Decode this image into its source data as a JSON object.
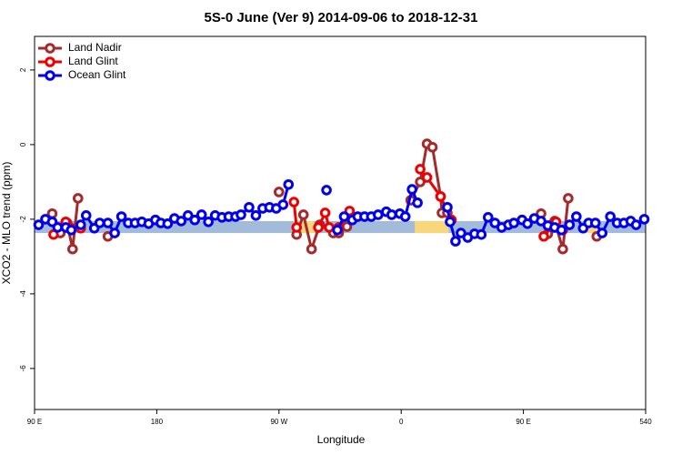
{
  "chart_data": {
    "type": "line",
    "title": "5S-0 June (Ver 9)   2014-09-06 to 2018-12-31",
    "x_label": "Longitude",
    "y_label": "XCO2 - MLO trend (ppm)",
    "xlim": [
      90,
      540
    ],
    "ylim": [
      -7.1,
      2.9
    ],
    "xticks": [
      {
        "value": 90,
        "label": "90 E"
      },
      180,
      {
        "value": 270,
        "label": "90 W"
      },
      {
        "value": 360,
        "label": "0"
      },
      {
        "value": 450,
        "label": "90 E"
      },
      540
    ],
    "yticks": [
      2,
      0,
      -2,
      -4,
      -6
    ],
    "legend": "top-left",
    "shaded_band": {
      "ylim": [
        -2.37,
        -2.05
      ],
      "color": "#a3bbdb",
      "highlight": [
        [
          281,
          296
        ],
        [
          370,
          395
        ],
        [
          494,
          505
        ]
      ],
      "highlight_color": "#f8d77c"
    },
    "series": [
      {
        "name": "Land Nadir",
        "color": "#a52a2a",
        "x": [
          103,
          109,
          114,
          118,
          122,
          127,
          144,
          200,
          270,
          275,
          283,
          288,
          294,
          300,
          310,
          314,
          320,
          340,
          367,
          374,
          379,
          383,
          389,
          390,
          394,
          430,
          463,
          468,
          473,
          479,
          483,
          500,
          504
        ],
        "values": [
          -1.85,
          -2.37,
          -2.1,
          -2.8,
          -1.44,
          null,
          -2.46,
          null,
          -1.27,
          null,
          -2.41,
          -1.88,
          -2.8,
          -2.15,
          -2.37,
          -2.37,
          -2.2,
          null,
          -1.49,
          -1.0,
          0.02,
          -0.07,
          -1.39,
          -1.83,
          -1.83,
          null,
          -1.85,
          -2.39,
          -2.05,
          -2.8,
          -1.44,
          null,
          -2.46
        ]
      },
      {
        "name": "Land Glint",
        "color": "#ee0000",
        "x": [
          104,
          113,
          124,
          200,
          281,
          283,
          290,
          299,
          304,
          307,
          314,
          322,
          340,
          374,
          379,
          389,
          397,
          430,
          465,
          474,
          479
        ],
        "values": [
          -2.41,
          -2.07,
          -2.24,
          null,
          -1.54,
          -2.22,
          null,
          -2.22,
          -1.83,
          -2.22,
          -2.22,
          -1.78,
          null,
          -0.66,
          -0.88,
          -1.39,
          -2.02,
          null,
          -2.46,
          -2.07,
          -2.29
        ]
      },
      {
        "name": "Ocean Glint",
        "color": "#0000ee",
        "x": [
          93,
          98,
          103,
          107,
          113,
          117,
          124,
          128,
          134,
          138,
          144,
          149,
          154,
          159,
          164,
          169,
          174,
          179,
          183,
          188,
          193,
          198,
          203,
          208,
          213,
          218,
          223,
          228,
          233,
          238,
          242,
          248,
          253,
          258,
          263,
          268,
          273,
          277,
          290,
          305,
          309,
          313,
          318,
          324,
          328,
          333,
          338,
          343,
          349,
          353,
          359,
          363,
          368,
          372,
          383,
          394,
          396,
          400,
          404,
          409,
          414,
          419,
          424,
          429,
          434,
          439,
          443,
          449,
          453,
          458,
          463,
          468,
          473,
          478,
          484,
          489,
          494,
          498,
          503,
          508,
          514,
          519,
          524,
          529,
          533,
          539
        ],
        "values": [
          -2.15,
          -2.0,
          -2.07,
          -2.22,
          -2.22,
          -2.29,
          -2.15,
          -1.9,
          -2.24,
          -2.1,
          -2.1,
          -2.37,
          -1.93,
          -2.1,
          -2.1,
          -2.07,
          -2.12,
          -2.02,
          -2.1,
          -2.12,
          -1.98,
          -2.05,
          -1.9,
          -2.02,
          -1.88,
          -2.07,
          -1.9,
          -1.95,
          -1.93,
          -1.93,
          -1.88,
          -1.68,
          -1.9,
          -1.71,
          -1.68,
          -1.71,
          -1.61,
          -1.07,
          null,
          -1.22,
          null,
          -2.29,
          -1.93,
          -2.02,
          -1.93,
          -1.93,
          -1.93,
          -1.88,
          -1.8,
          -1.88,
          -1.85,
          -1.93,
          -1.2,
          -1.56,
          null,
          -1.68,
          -2.07,
          -2.59,
          -2.37,
          -2.49,
          -2.39,
          -2.41,
          -1.95,
          -2.1,
          -2.22,
          -2.15,
          -2.1,
          -2.02,
          -2.12,
          -1.98,
          -2.05,
          -2.17,
          -2.22,
          -2.29,
          -2.15,
          -1.93,
          -2.24,
          -2.1,
          -2.1,
          -2.37,
          -1.93,
          -2.1,
          -2.1,
          -2.05,
          -2.15,
          -2.0
        ]
      }
    ]
  }
}
